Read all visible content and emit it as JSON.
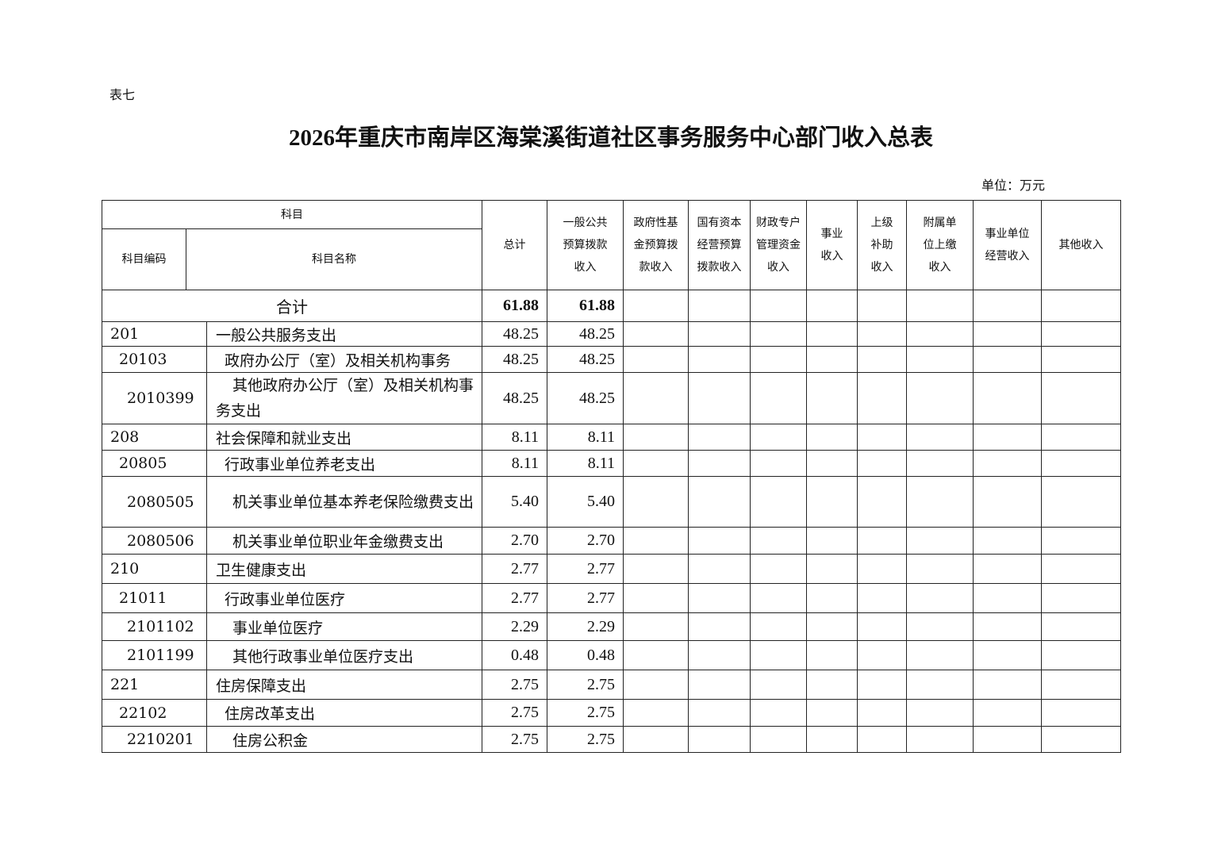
{
  "label": "表七",
  "title": "2026年重庆市南岸区海棠溪街道社区事务服务中心部门收入总表",
  "unit": "单位：万元",
  "headers": {
    "subject": "科目",
    "code": "科目编码",
    "name": "科目名称",
    "total": "总计",
    "general": "一般公共预算拨款收入",
    "fund": "政府性基金预算拨款收入",
    "state": "国有资本经营预算拨款收入",
    "special": "财政专户管理资金收入",
    "business": "事业收入",
    "superior": "上级补助收入",
    "affiliated": "附属单位上缴收入",
    "operating": "事业单位经营收入",
    "other": "其他收入"
  },
  "total_row": {
    "label": "合计",
    "total": "61.88",
    "general": "61.88"
  },
  "rows": [
    {
      "code": "201",
      "name": "一般公共服务支出",
      "total": "48.25",
      "general": "48.25",
      "level": 1
    },
    {
      "code": "20103",
      "name": "政府办公厅（室）及相关机构事务",
      "total": "48.25",
      "general": "48.25",
      "level": 2
    },
    {
      "code": "2010399",
      "name": "其他政府办公厅（室）及相关机构事务支出",
      "total": "48.25",
      "general": "48.25",
      "level": 3
    },
    {
      "code": "208",
      "name": "社会保障和就业支出",
      "total": "8.11",
      "general": "8.11",
      "level": 1
    },
    {
      "code": "20805",
      "name": "行政事业单位养老支出",
      "total": "8.11",
      "general": "8.11",
      "level": 2
    },
    {
      "code": "2080505",
      "name": "机关事业单位基本养老保险缴费支出",
      "total": "5.40",
      "general": "5.40",
      "level": 3
    },
    {
      "code": "2080506",
      "name": "机关事业单位职业年金缴费支出",
      "total": "2.70",
      "general": "2.70",
      "level": 3
    },
    {
      "code": "210",
      "name": "卫生健康支出",
      "total": "2.77",
      "general": "2.77",
      "level": 1
    },
    {
      "code": "21011",
      "name": "行政事业单位医疗",
      "total": "2.77",
      "general": "2.77",
      "level": 2
    },
    {
      "code": "2101102",
      "name": "事业单位医疗",
      "total": "2.29",
      "general": "2.29",
      "level": 3
    },
    {
      "code": "2101199",
      "name": "其他行政事业单位医疗支出",
      "total": "0.48",
      "general": "0.48",
      "level": 3
    },
    {
      "code": "221",
      "name": "住房保障支出",
      "total": "2.75",
      "general": "2.75",
      "level": 1
    },
    {
      "code": "22102",
      "name": "住房改革支出",
      "total": "2.75",
      "general": "2.75",
      "level": 2
    },
    {
      "code": "2210201",
      "name": "住房公积金",
      "total": "2.75",
      "general": "2.75",
      "level": 3
    }
  ]
}
